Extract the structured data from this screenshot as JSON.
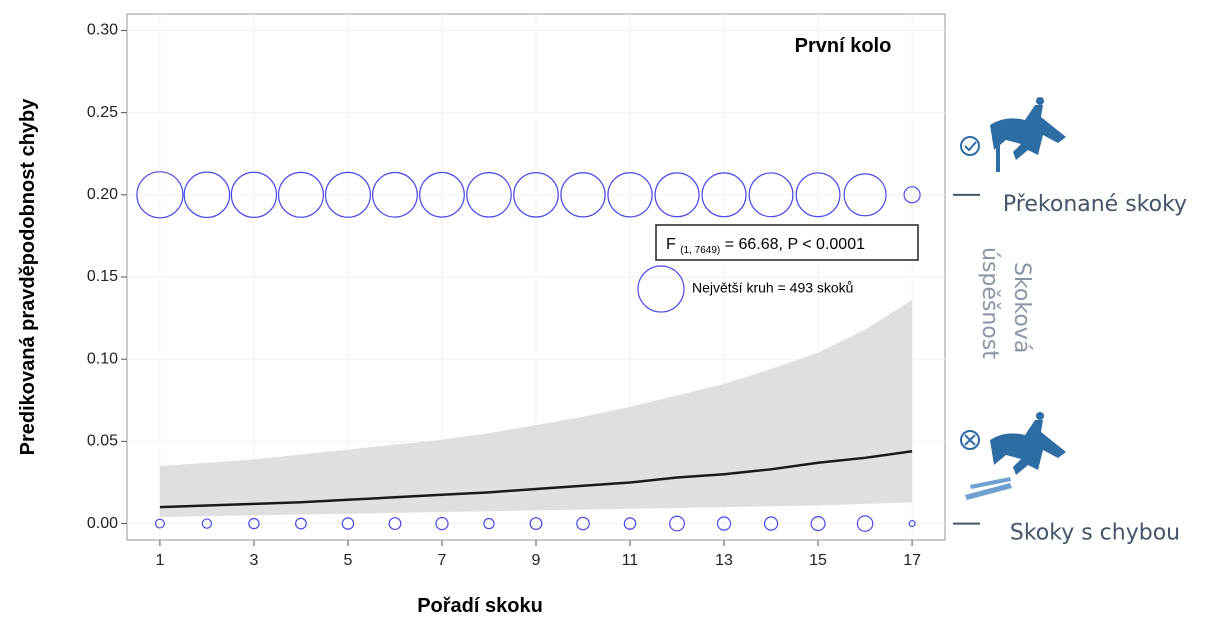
{
  "chart_data": {
    "type": "bubble-line",
    "title": "První kolo",
    "x_label": "Pořadí skoku",
    "y_label": "Predikovaná pravděpodobnost chyby",
    "x": [
      1,
      2,
      3,
      4,
      5,
      6,
      7,
      8,
      9,
      10,
      11,
      12,
      13,
      14,
      15,
      16,
      17
    ],
    "predicted": [
      0.01,
      0.011,
      0.012,
      0.013,
      0.0145,
      0.016,
      0.0175,
      0.019,
      0.021,
      0.023,
      0.025,
      0.028,
      0.03,
      0.033,
      0.037,
      0.04,
      0.044
    ],
    "ci_lower": [
      0.004,
      0.0045,
      0.005,
      0.0055,
      0.006,
      0.0065,
      0.007,
      0.0075,
      0.008,
      0.0085,
      0.009,
      0.0095,
      0.01,
      0.0105,
      0.011,
      0.012,
      0.013
    ],
    "ci_upper": [
      0.035,
      0.037,
      0.039,
      0.042,
      0.045,
      0.048,
      0.051,
      0.055,
      0.06,
      0.065,
      0.071,
      0.078,
      0.085,
      0.094,
      0.104,
      0.118,
      0.136
    ],
    "line_color": "#1a1a1a",
    "band_color": "#d9d9d9",
    "bubbles": [
      {
        "name": "Překonané skoky",
        "y": 0.2,
        "color": "#4a4ae8",
        "counts": [
          493,
          480,
          475,
          470,
          470,
          465,
          465,
          460,
          460,
          455,
          455,
          450,
          450,
          445,
          445,
          410,
          60
        ]
      },
      {
        "name": "Skoky s chybou",
        "y": 0,
        "color": "#4a4ae8",
        "counts": [
          18,
          20,
          24,
          26,
          30,
          32,
          34,
          24,
          32,
          36,
          30,
          50,
          40,
          40,
          45,
          55,
          8
        ]
      }
    ],
    "size_legend": {
      "label": "Největší kruh = 493 skoků",
      "value": 493
    },
    "stat": {
      "f": "F",
      "df": "(1, 7649)",
      "rest": "= 66.68, P < 0.0001"
    },
    "side_label": [
      "Skoková",
      "úspěšnost"
    ],
    "xlim": [
      0.3,
      17.7
    ],
    "ylim": [
      -0.01,
      0.31
    ],
    "xticks": [
      1,
      3,
      5,
      7,
      9,
      11,
      13,
      15,
      17
    ],
    "yticks": [
      {
        "value": 0,
        "label": "0.00"
      },
      {
        "value": 0.05,
        "label": "0.05"
      },
      {
        "value": 0.1,
        "label": "0.10"
      },
      {
        "value": 0.15,
        "label": "0.15"
      },
      {
        "value": 0.2,
        "label": "0.20"
      },
      {
        "value": 0.25,
        "label": "0.25"
      },
      {
        "value": 0.3,
        "label": "0.30"
      }
    ],
    "grid": true
  }
}
